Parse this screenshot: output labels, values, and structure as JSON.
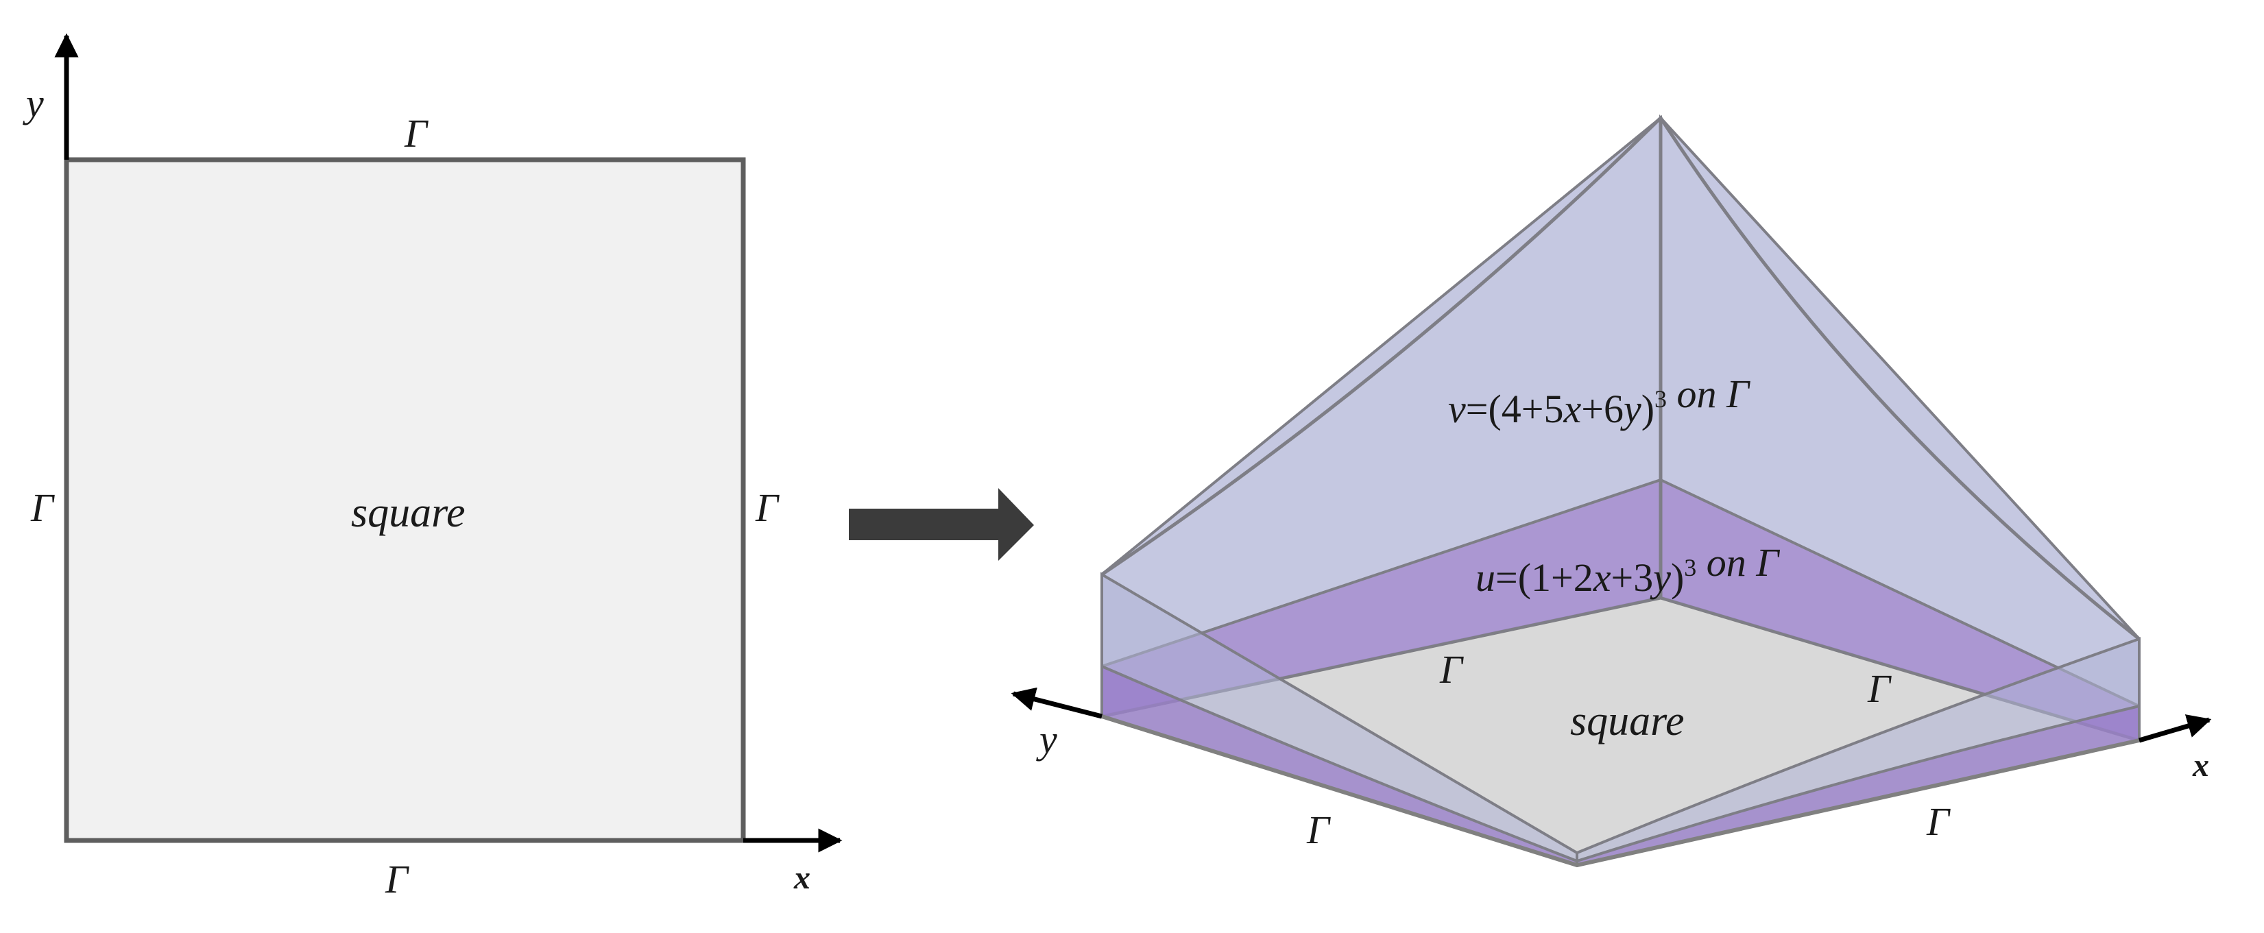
{
  "left_panel": {
    "axis_x": "x",
    "axis_y": "y",
    "boundary_top": "Γ",
    "boundary_bottom": "Γ",
    "boundary_left": "Γ",
    "boundary_right": "Γ",
    "region": "square"
  },
  "right_panel": {
    "axis_x": "x",
    "axis_y": "y",
    "region": "square",
    "boundary_left_near": "Γ",
    "boundary_right_near": "Γ",
    "boundary_left_far": "Γ",
    "boundary_right_far": "Γ",
    "v_label": {
      "lhs": "v=(4+5",
      "x": "x",
      "plus1": "+6",
      "y": "y",
      "close": ")",
      "exp": "3",
      "on": "on",
      "gamma": "Γ"
    },
    "u_label": {
      "lhs": "u=(1+2",
      "x": "x",
      "plus1": "+3",
      "y": "y",
      "close": ")",
      "exp": "3",
      "on": "on",
      "gamma": "Γ"
    }
  },
  "colors": {
    "square_fill_left": "#f1f1f1",
    "square_edge": "#5e5e5e",
    "square_fill_right": "#d9d9d9",
    "v_surface": "#aeb3d6",
    "u_surface": "#a184cc",
    "arrow": "#3b3b3b"
  }
}
